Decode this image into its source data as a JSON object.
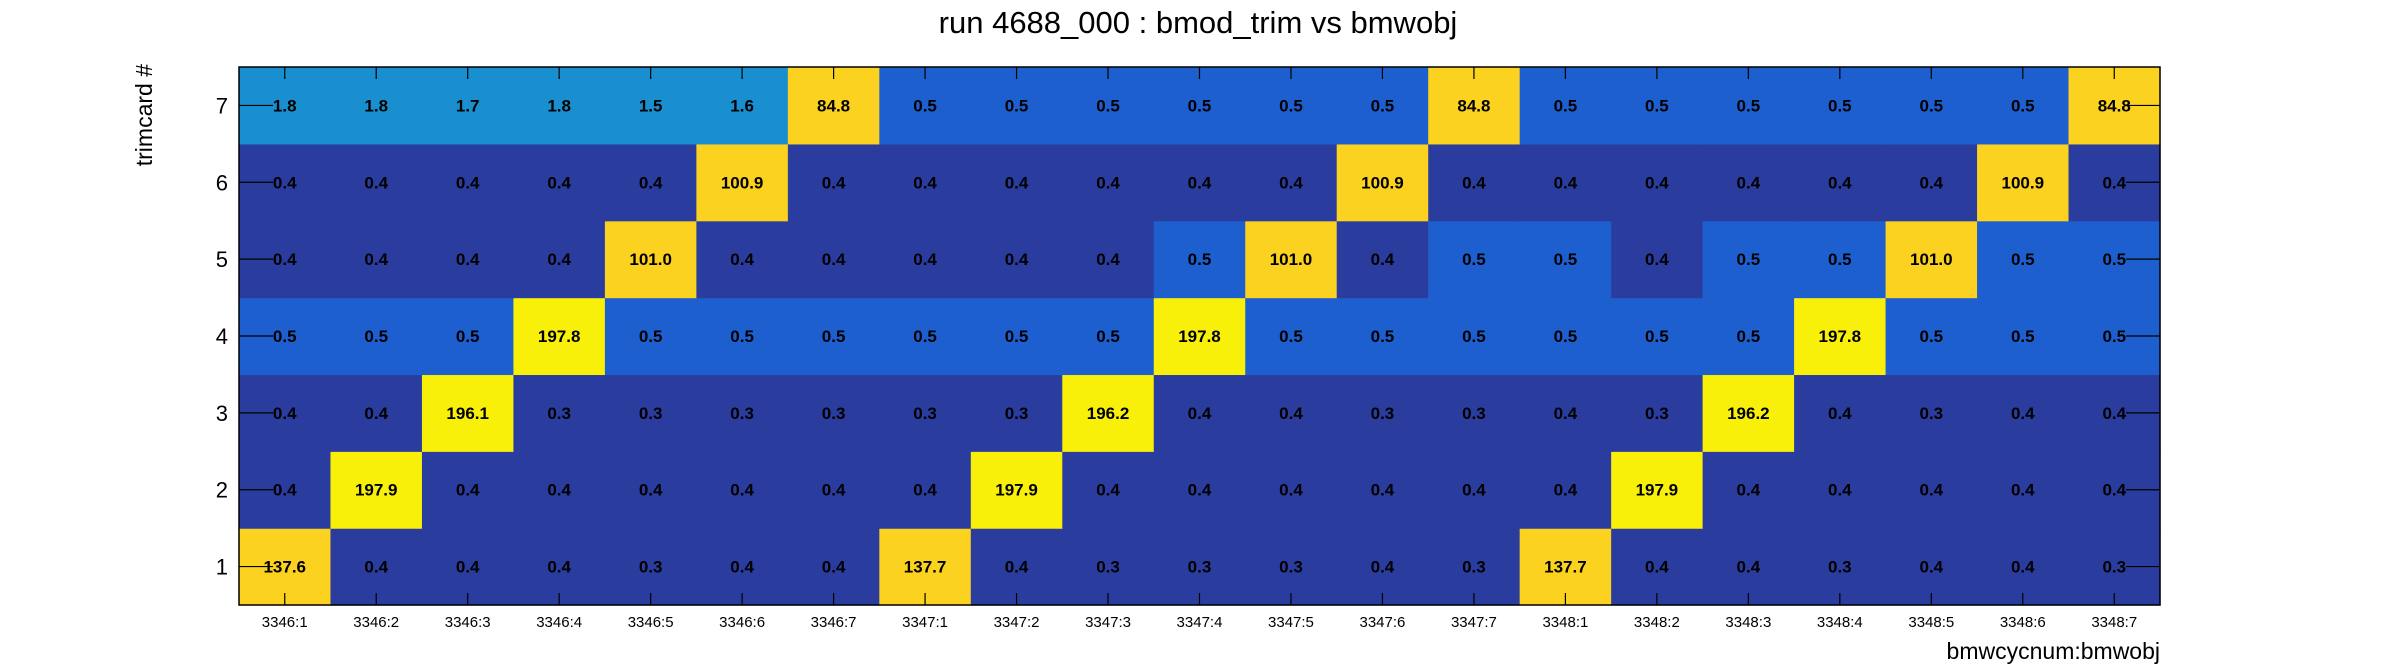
{
  "chart_data": {
    "type": "heatmap",
    "title": "run 4688_000 : bmod_trim vs bmwobj",
    "xlabel": "bmwcycnum:bmwobj",
    "ylabel": "trimcard #",
    "x_categories": [
      "3346:1",
      "3346:2",
      "3346:3",
      "3346:4",
      "3346:5",
      "3346:6",
      "3346:7",
      "3347:1",
      "3347:2",
      "3347:3",
      "3347:4",
      "3347:5",
      "3347:6",
      "3347:7",
      "3348:1",
      "3348:2",
      "3348:3",
      "3348:4",
      "3348:5",
      "3348:6",
      "3348:7"
    ],
    "y_categories": [
      "1",
      "2",
      "3",
      "4",
      "5",
      "6",
      "7"
    ],
    "values_by_row": {
      "7": [
        "1.8",
        "1.8",
        "1.7",
        "1.8",
        "1.5",
        "1.6",
        "84.8",
        "0.5",
        "0.5",
        "0.5",
        "0.5",
        "0.5",
        "0.5",
        "84.8",
        "0.5",
        "0.5",
        "0.5",
        "0.5",
        "0.5",
        "0.5",
        "84.8"
      ],
      "6": [
        "0.4",
        "0.4",
        "0.4",
        "0.4",
        "0.4",
        "100.9",
        "0.4",
        "0.4",
        "0.4",
        "0.4",
        "0.4",
        "0.4",
        "100.9",
        "0.4",
        "0.4",
        "0.4",
        "0.4",
        "0.4",
        "0.4",
        "100.9",
        "0.4"
      ],
      "5": [
        "0.4",
        "0.4",
        "0.4",
        "0.4",
        "101.0",
        "0.4",
        "0.4",
        "0.4",
        "0.4",
        "0.4",
        "0.5",
        "101.0",
        "0.4",
        "0.5",
        "0.5",
        "0.4",
        "0.5",
        "0.5",
        "101.0",
        "0.5",
        "0.5"
      ],
      "4": [
        "0.5",
        "0.5",
        "0.5",
        "197.8",
        "0.5",
        "0.5",
        "0.5",
        "0.5",
        "0.5",
        "0.5",
        "197.8",
        "0.5",
        "0.5",
        "0.5",
        "0.5",
        "0.5",
        "0.5",
        "197.8",
        "0.5",
        "0.5",
        "0.5"
      ],
      "3": [
        "0.4",
        "0.4",
        "196.1",
        "0.3",
        "0.3",
        "0.3",
        "0.3",
        "0.3",
        "0.3",
        "196.2",
        "0.4",
        "0.4",
        "0.3",
        "0.3",
        "0.4",
        "0.3",
        "196.2",
        "0.4",
        "0.3",
        "0.4",
        "0.4"
      ],
      "2": [
        "0.4",
        "197.9",
        "0.4",
        "0.4",
        "0.4",
        "0.4",
        "0.4",
        "0.4",
        "197.9",
        "0.4",
        "0.4",
        "0.4",
        "0.4",
        "0.4",
        "0.4",
        "197.9",
        "0.4",
        "0.4",
        "0.4",
        "0.4",
        "0.4"
      ],
      "1": [
        "137.6",
        "0.4",
        "0.4",
        "0.4",
        "0.3",
        "0.4",
        "0.4",
        "137.7",
        "0.4",
        "0.3",
        "0.3",
        "0.3",
        "0.4",
        "0.3",
        "137.7",
        "0.4",
        "0.4",
        "0.3",
        "0.4",
        "0.4",
        "0.3"
      ]
    },
    "palette": {
      "low": "#2a3d9e",
      "mid": "#1e5fcf",
      "row7": "#1a8fd0",
      "high": "#f9f00a",
      "upper": "#fbd21f"
    },
    "grid": false,
    "legend": "none"
  }
}
